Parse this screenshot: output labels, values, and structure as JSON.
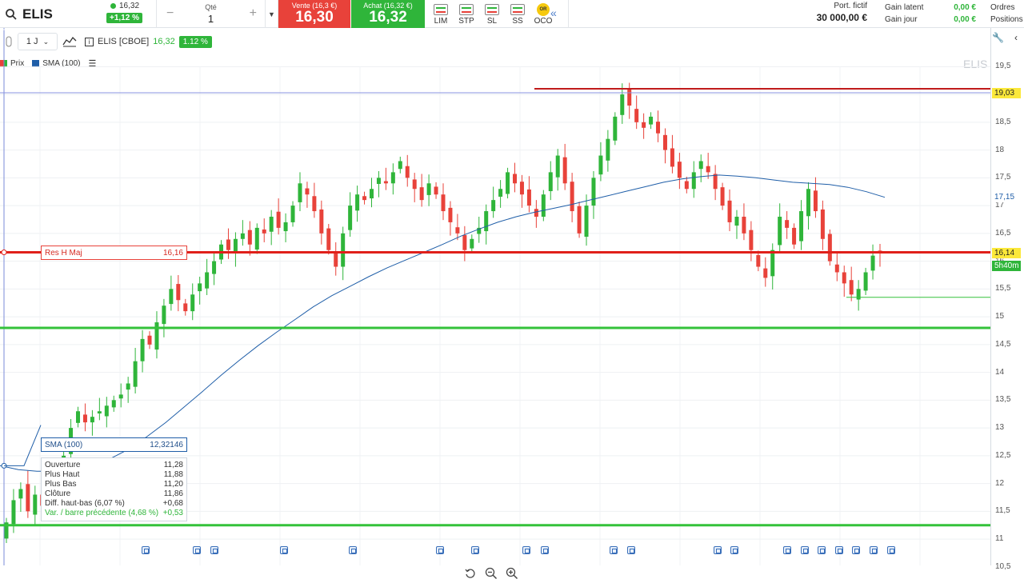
{
  "topbar": {
    "ticker": "ELIS",
    "last_price": "16,32",
    "change_badge": "+1,12 %",
    "qty_label": "Qté",
    "qty_value": "1",
    "sell_label": "Vente (16,3 €)",
    "sell_price": "16,30",
    "buy_label": "Achat (16,32 €)",
    "buy_price": "16,32",
    "order_types": [
      "LIM",
      "STP",
      "SL",
      "SS",
      "OCO"
    ],
    "oco_badge": "OR",
    "portfolio_label": "Port. fictif",
    "portfolio_value": "30 000,00 €",
    "gain_latent_label": "Gain latent",
    "gain_jour_label": "Gain jour",
    "gain_latent_value": "0,00 €",
    "gain_jour_value": "0,00 €",
    "tab_orders": "Ordres",
    "tab_positions": "Positions"
  },
  "toolbar": {
    "interval": "1 J",
    "instrument": "ELIS [CBOE]",
    "price": "16,32",
    "change": "1.12 %"
  },
  "legend": {
    "price_label": "Prix",
    "sma_label": "SMA (100)"
  },
  "watermark": "ELIS",
  "axis": {
    "ticks": [
      "19,5",
      "19",
      "18,5",
      "18",
      "17,5",
      "17",
      "16,5",
      "16",
      "15,5",
      "15",
      "14,5",
      "14",
      "13,5",
      "13",
      "12,5",
      "12",
      "11,5",
      "11",
      "10,5"
    ],
    "tag_high": "19,03",
    "tag_sma": "17,15",
    "tag_last": "16,14",
    "tag_timer": "5h40m"
  },
  "annotations": {
    "resistance_label": "Res H Maj",
    "resistance_value": "16,16",
    "sma_label": "SMA (100)",
    "sma_value": "12,32146"
  },
  "tooltip": [
    {
      "label": "Ouverture",
      "value": "11,28"
    },
    {
      "label": "Plus Haut",
      "value": "11,88"
    },
    {
      "label": "Plus Bas",
      "value": "11,20"
    },
    {
      "label": "Clôture",
      "value": "11,86"
    },
    {
      "label": "Diff. haut-bas (6,07 %)",
      "value": "+0,68"
    },
    {
      "label": "Var. / barre précédente (4,68 %)",
      "value": "+0,53"
    }
  ],
  "colors": {
    "up": "#2fb53a",
    "down": "#e8423a",
    "sma": "#1f5ea8",
    "resistance": "#e0201a",
    "support": "#34c23a",
    "high_line": "#c01b1b"
  },
  "chart_data": {
    "type": "candlestick",
    "ylim": [
      10.4,
      19.7
    ],
    "horizontal_lines": [
      {
        "name": "Res H Maj",
        "value": 16.16
      },
      {
        "value": 19.03
      },
      {
        "value": 14.8
      },
      {
        "value": 11.25
      },
      {
        "value": 15.35
      }
    ],
    "close": [
      11.3,
      11.7,
      11.9,
      11.5,
      11.8,
      11.6,
      11.9,
      12.3,
      12.5,
      13.0,
      13.3,
      13.1,
      13.2,
      13.3,
      13.4,
      13.5,
      13.6,
      13.8,
      14.2,
      14.6,
      14.5,
      14.9,
      15.2,
      15.5,
      15.3,
      15.1,
      15.4,
      15.6,
      15.8,
      16.0,
      16.3,
      16.2,
      16.4,
      16.5,
      16.3,
      16.6,
      16.5,
      16.8,
      16.6,
      16.7,
      17.0,
      17.4,
      17.2,
      16.9,
      16.5,
      16.2,
      15.9,
      16.5,
      17.0,
      17.2,
      17.1,
      17.3,
      17.5,
      17.4,
      17.6,
      17.8,
      17.5,
      17.3,
      17.1,
      17.4,
      17.2,
      16.9,
      16.7,
      16.5,
      16.2,
      16.4,
      16.6,
      16.9,
      17.1,
      17.3,
      17.6,
      17.4,
      17.2,
      17.0,
      16.8,
      17.2,
      17.6,
      17.9,
      17.4,
      16.9,
      16.5,
      17.0,
      17.5,
      17.9,
      18.2,
      18.6,
      19.0,
      18.8,
      18.5,
      18.4,
      18.6,
      18.3,
      18.0,
      17.7,
      17.5,
      17.3,
      17.6,
      17.8,
      17.6,
      17.3,
      17.0,
      16.7,
      16.8,
      16.5,
      16.2,
      15.9,
      15.7,
      16.2,
      16.8,
      16.6,
      16.3,
      16.9,
      17.3,
      16.9,
      16.4,
      16.0,
      15.8,
      15.6,
      15.4,
      15.5,
      15.8,
      16.1,
      16.14
    ],
    "sma100": [
      12.32,
      12.25,
      12.22,
      12.22,
      12.25,
      12.32,
      12.45,
      12.62,
      12.85,
      13.1,
      13.38,
      13.66,
      13.95,
      14.22,
      14.48,
      14.72,
      14.95,
      15.18,
      15.38,
      15.55,
      15.72,
      15.88,
      16.02,
      16.16,
      16.3,
      16.45,
      16.58,
      16.7,
      16.8,
      16.88,
      16.95,
      17.02,
      17.1,
      17.18,
      17.26,
      17.34,
      17.42,
      17.48,
      17.52,
      17.55,
      17.53,
      17.5,
      17.46,
      17.42,
      17.4,
      17.38,
      17.33,
      17.25,
      17.15
    ]
  }
}
